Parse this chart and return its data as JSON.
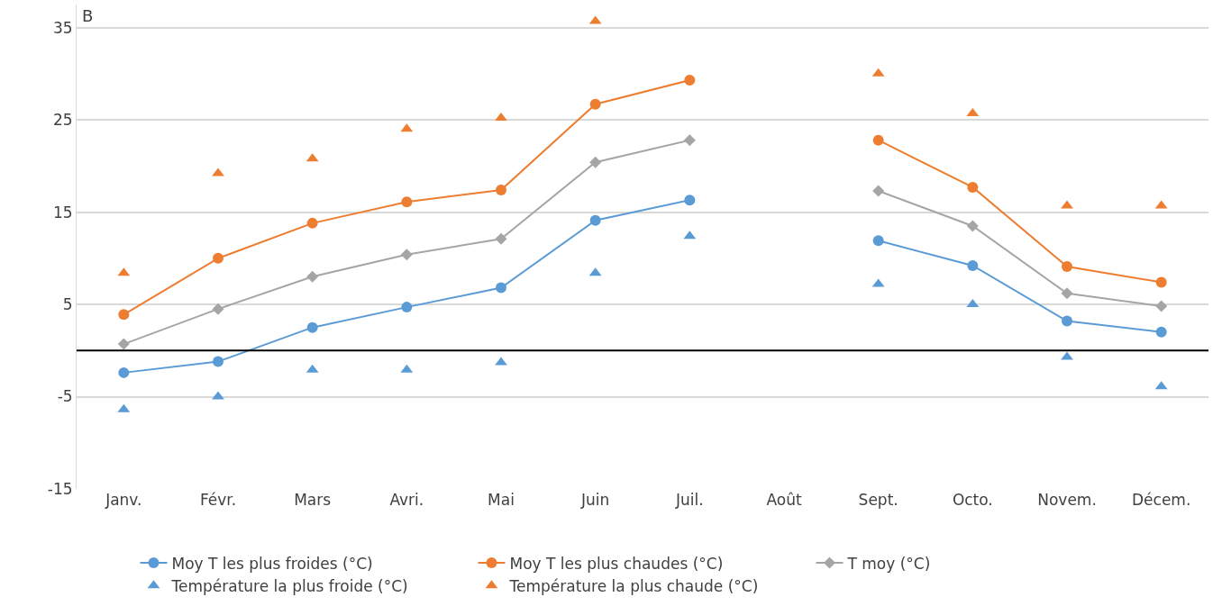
{
  "chart_data": {
    "type": "line",
    "categories": [
      "Janv.",
      "Févr.",
      "Mars",
      "Avri.",
      "Mai",
      "Juin",
      "Juil.",
      "Août",
      "Sept.",
      "Octo.",
      "Novem.",
      "Décem."
    ],
    "series": [
      {
        "name": "Moy T les plus froides (°C)",
        "color": "#5b9bd5",
        "marker": "circle",
        "values": [
          -2.4,
          -1.2,
          2.5,
          4.7,
          6.8,
          14.1,
          16.3,
          null,
          11.9,
          9.2,
          3.2,
          2.0
        ]
      },
      {
        "name": "Moy T les plus chaudes (°C)",
        "color": "#ed7d31",
        "marker": "circle",
        "values": [
          3.9,
          10.0,
          13.8,
          16.1,
          17.4,
          26.7,
          29.3,
          null,
          22.8,
          17.7,
          9.1,
          7.4
        ]
      },
      {
        "name": "T moy (°C)",
        "color": "#a5a5a5",
        "marker": "diamond",
        "values": [
          0.7,
          4.5,
          8.0,
          10.4,
          12.1,
          20.4,
          22.8,
          null,
          17.3,
          13.5,
          6.2,
          4.8
        ]
      },
      {
        "name": "Température la plus froide (°C)",
        "color": "#5b9bd5",
        "type": "scatter",
        "marker": "triangle",
        "values": [
          -6.4,
          -5.0,
          -2.1,
          -2.1,
          -1.3,
          8.4,
          12.4,
          null,
          7.2,
          5.0,
          -0.7,
          -3.9
        ]
      },
      {
        "name": "Température la plus chaude (°C)",
        "color": "#ed7d31",
        "type": "scatter",
        "marker": "triangle",
        "values": [
          8.4,
          19.2,
          20.8,
          24.0,
          25.2,
          35.7,
          null,
          null,
          30.0,
          25.7,
          15.7,
          15.7
        ]
      }
    ],
    "ylim": [
      -15,
      37.5
    ],
    "yticks": [
      -15,
      -5,
      5,
      15,
      25,
      35
    ],
    "ref_lines": [
      {
        "axis": "y",
        "value": 0,
        "color": "#000000"
      }
    ],
    "annotations": [
      "B"
    ],
    "grid": "y",
    "legend": "bottom",
    "line_style": "solid"
  }
}
